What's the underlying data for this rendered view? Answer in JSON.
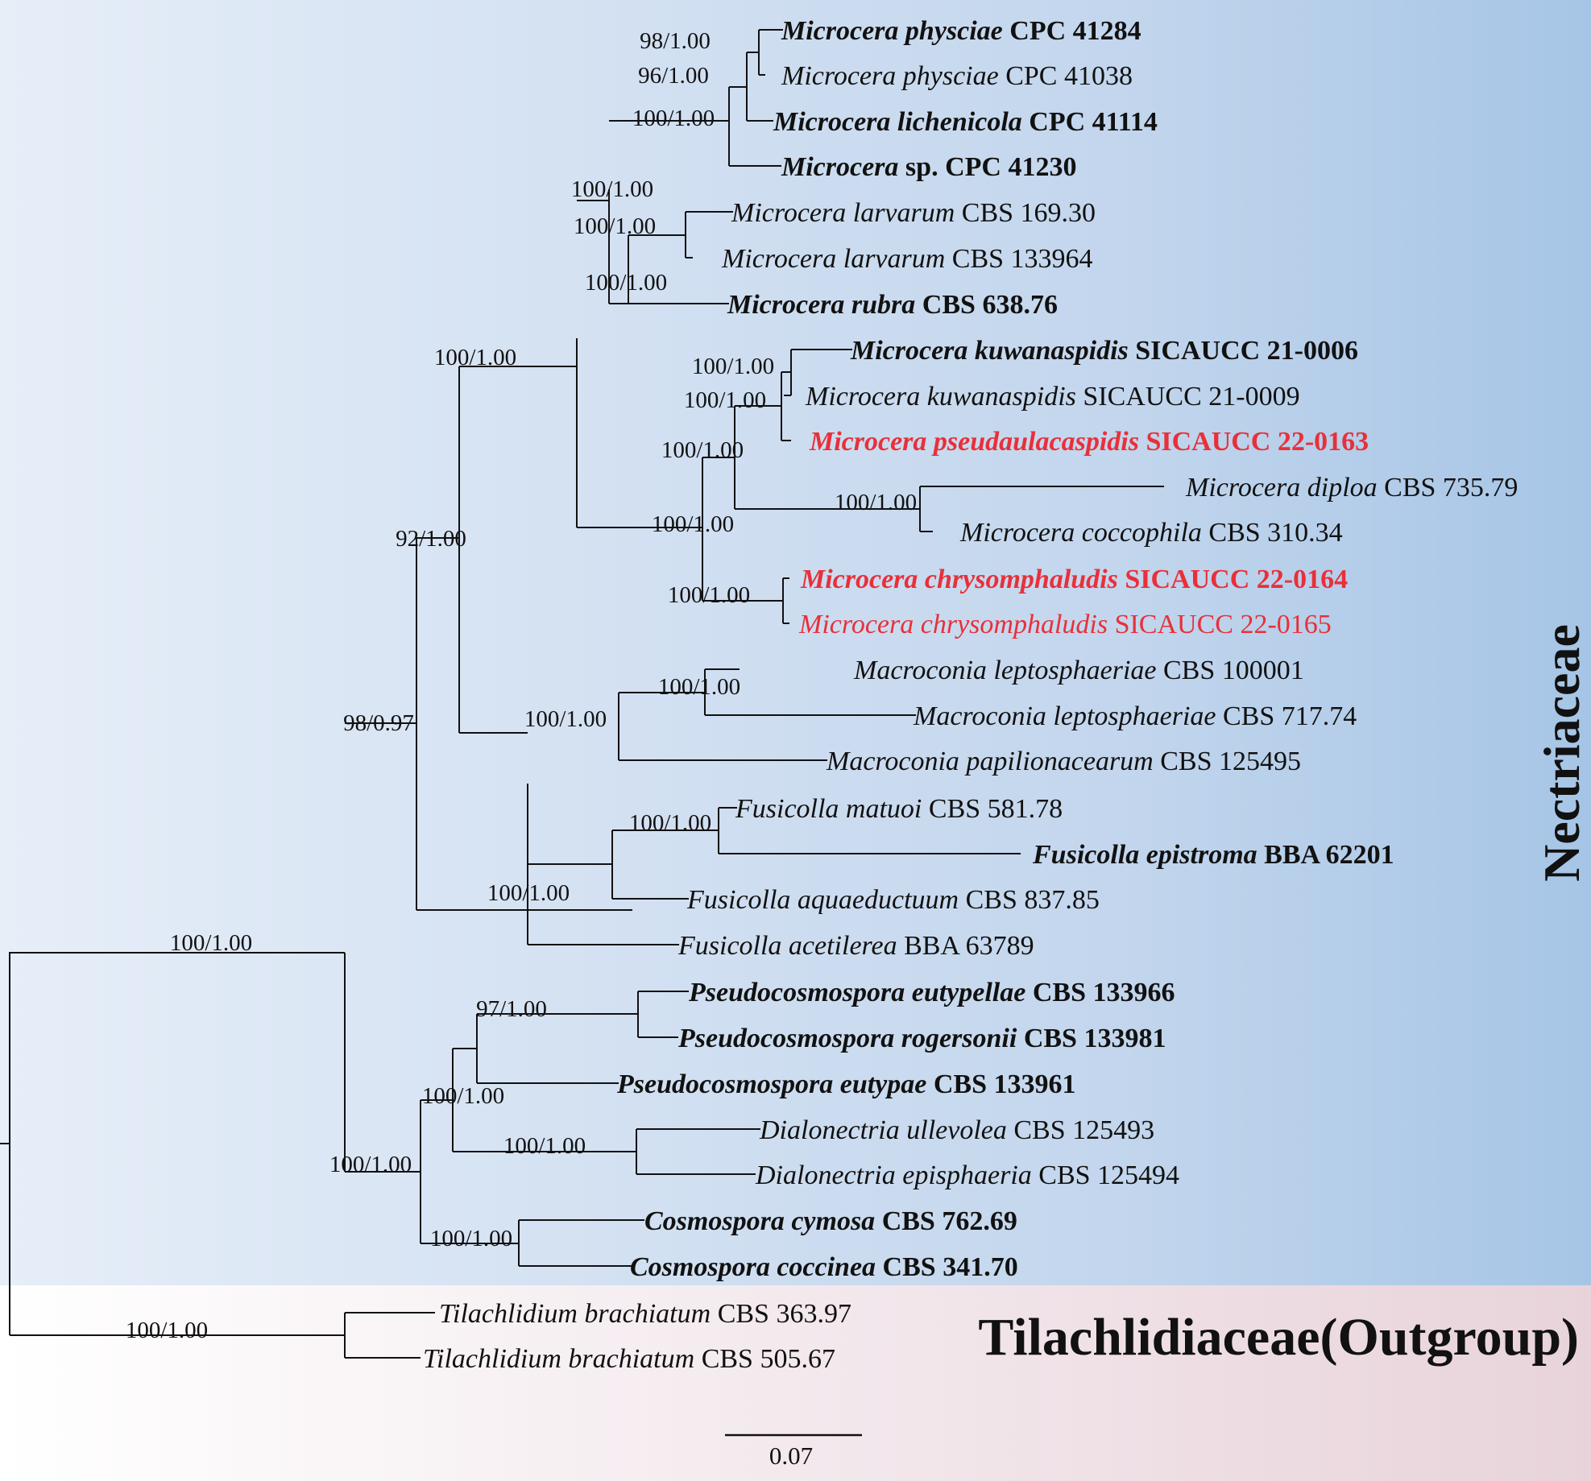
{
  "colors": {
    "nectriaceae_bg": "#b0c9e6",
    "outgroup_bg": "#f0dde3",
    "new_species": "#e8303a",
    "text": "#111111"
  },
  "families": {
    "ingroup": "Nectriaceae",
    "outgroup": "Tilachlidiaceae(Outgroup)"
  },
  "scale_bar": {
    "value": 0.07,
    "label": "0.07"
  },
  "taxa": [
    {
      "id": "t1",
      "genus": "Microcera physciae",
      "strain": "CPC 41284",
      "bold": true,
      "red": false
    },
    {
      "id": "t2",
      "genus": "Microcera physciae",
      "strain": "CPC 41038",
      "bold": false,
      "red": false
    },
    {
      "id": "t3",
      "genus": "Microcera lichenicola",
      "strain": "CPC 41114",
      "bold": true,
      "red": false
    },
    {
      "id": "t4",
      "genus": "Microcera",
      "rest": "sp. CPC 41230",
      "bold": true,
      "red": false
    },
    {
      "id": "t5",
      "genus": "Microcera larvarum",
      "strain": "CBS 169.30",
      "bold": false,
      "red": false
    },
    {
      "id": "t6",
      "genus": "Microcera larvarum",
      "strain": "CBS 133964",
      "bold": false,
      "red": false
    },
    {
      "id": "t7",
      "genus": "Microcera rubra",
      "strain": "CBS 638.76",
      "bold": true,
      "red": false
    },
    {
      "id": "t8",
      "genus": "Microcera kuwanaspidis",
      "strain": "SICAUCC 21-0006",
      "bold": true,
      "red": false
    },
    {
      "id": "t9",
      "genus": "Microcera kuwanaspidis",
      "strain": "SICAUCC 21-0009",
      "bold": false,
      "red": false
    },
    {
      "id": "t10",
      "genus": "Microcera pseudaulacaspidis",
      "strain": "SICAUCC 22-0163",
      "bold": true,
      "red": true
    },
    {
      "id": "t11",
      "genus": "Microcera diploa",
      "strain": "CBS 735.79",
      "bold": false,
      "red": false
    },
    {
      "id": "t12",
      "genus": "Microcera coccophila",
      "strain": "CBS 310.34",
      "bold": false,
      "red": false
    },
    {
      "id": "t13",
      "genus": "Microcera chrysomphaludis",
      "strain": "SICAUCC 22-0164",
      "bold": true,
      "red": true
    },
    {
      "id": "t14",
      "genus": "Microcera chrysomphaludis",
      "strain": "SICAUCC 22-0165",
      "bold": false,
      "red": true
    },
    {
      "id": "t15",
      "genus": "Macroconia leptosphaeriae",
      "strain": "CBS 100001",
      "bold": false,
      "red": false
    },
    {
      "id": "t16",
      "genus": "Macroconia leptosphaeriae",
      "strain": "CBS 717.74",
      "bold": false,
      "red": false
    },
    {
      "id": "t17",
      "genus": "Macroconia papilionacearum",
      "strain": "CBS 125495",
      "bold": false,
      "red": false
    },
    {
      "id": "t18",
      "genus": "Fusicolla matuoi",
      "strain": "CBS 581.78",
      "bold": false,
      "red": false
    },
    {
      "id": "t19",
      "genus": "Fusicolla epistroma",
      "strain": "BBA 62201",
      "bold": true,
      "red": false
    },
    {
      "id": "t20",
      "genus": "Fusicolla aquaeductuum",
      "strain": "CBS 837.85",
      "bold": false,
      "red": false
    },
    {
      "id": "t21",
      "genus": "Fusicolla acetilerea",
      "strain": "BBA 63789",
      "bold": false,
      "red": false
    },
    {
      "id": "t22",
      "genus": "Pseudocosmospora eutypellae",
      "strain": "CBS 133966",
      "bold": true,
      "red": false
    },
    {
      "id": "t23",
      "genus": "Pseudocosmospora rogersonii",
      "strain": "CBS 133981",
      "bold": true,
      "red": false
    },
    {
      "id": "t24",
      "genus": "Pseudocosmospora eutypae",
      "strain": "CBS 133961",
      "bold": true,
      "red": false
    },
    {
      "id": "t25",
      "genus": "Dialonectria ullevolea",
      "strain": "CBS 125493",
      "bold": false,
      "red": false
    },
    {
      "id": "t26",
      "genus": "Dialonectria episphaeria",
      "strain": "CBS 125494",
      "bold": false,
      "red": false
    },
    {
      "id": "t27",
      "genus": "Cosmospora cymosa",
      "strain": "CBS 762.69",
      "bold": true,
      "red": false
    },
    {
      "id": "t28",
      "genus": "Cosmospora coccinea",
      "strain": "CBS 341.70",
      "bold": true,
      "red": false
    },
    {
      "id": "t29",
      "genus": "Tilachlidium brachiatum",
      "strain": "CBS 363.97",
      "bold": false,
      "red": false
    },
    {
      "id": "t30",
      "genus": "Tilachlidium brachiatum",
      "strain": "CBS 505.67",
      "bold": false,
      "red": false
    }
  ],
  "support": [
    "98/1.00",
    "96/1.00",
    "100/1.00",
    "100/1.00",
    "100/1.00",
    "100/1.00",
    "100/1.00",
    "100/1.00",
    "100/1.00",
    "100/1.00",
    "100/1.00",
    "100/1.00",
    "100/1.00",
    "100/1.00",
    "92/1.00",
    "100/1.00",
    "100/1.00",
    "100/1.00",
    "98/0.97",
    "100/1.00",
    "97/1.00",
    "100/1.00",
    "100/1.00",
    "100/1.00",
    "100/1.00",
    "100/1.00"
  ]
}
